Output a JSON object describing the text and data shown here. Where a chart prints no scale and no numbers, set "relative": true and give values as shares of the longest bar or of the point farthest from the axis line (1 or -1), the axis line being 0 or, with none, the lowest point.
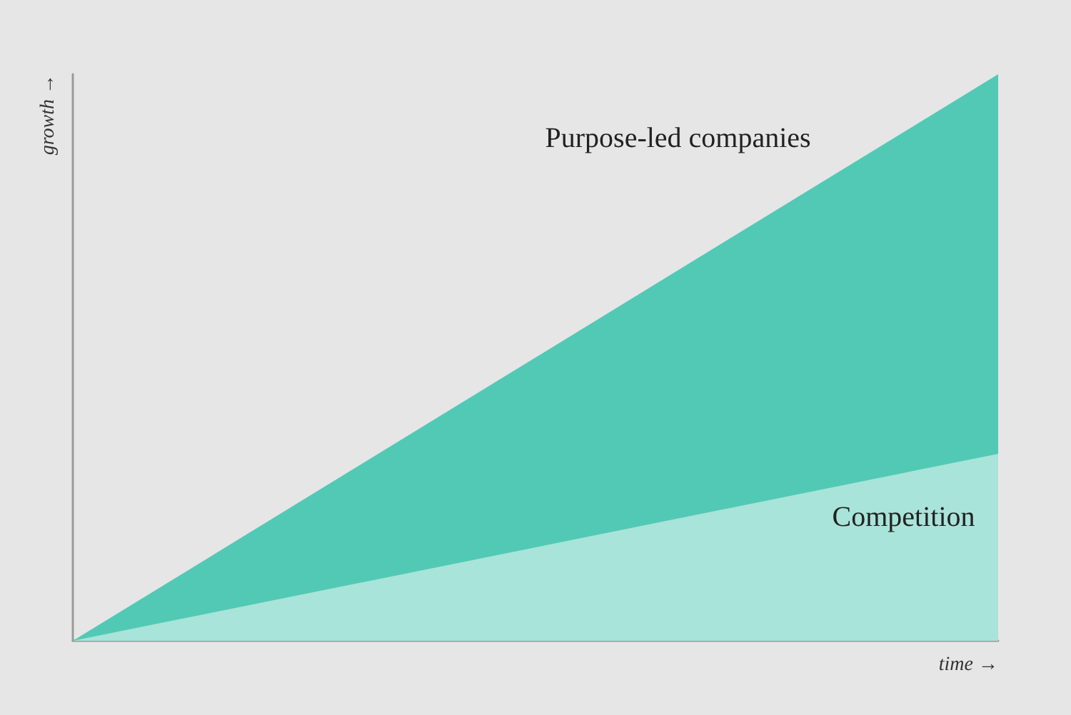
{
  "chart_data": {
    "type": "area",
    "relative": true,
    "xlabel": "time →",
    "ylabel": "growth →",
    "categories": [
      null,
      null
    ],
    "series": [
      {
        "name": "Purpose-led companies",
        "color": "#52c9b5",
        "values": [
          0,
          1
        ]
      },
      {
        "name": "Competition",
        "color": "#a8e4d9",
        "values": [
          0,
          0.33
        ]
      }
    ]
  }
}
